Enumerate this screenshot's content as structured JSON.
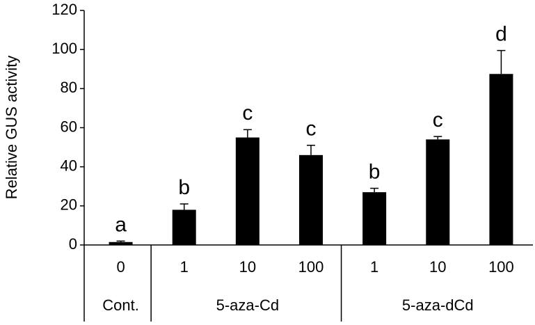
{
  "chart_data": {
    "type": "bar",
    "y_label": "Relative GUS activity",
    "color": "#000000",
    "ylim": [
      0,
      120
    ],
    "yticks": [
      0,
      20,
      40,
      60,
      80,
      100,
      120
    ],
    "grid": false,
    "groups": [
      {
        "name": "Cont.",
        "categories": [
          "0"
        ],
        "values": [
          1.5
        ],
        "errors": [
          0.5
        ],
        "letters": [
          "a"
        ]
      },
      {
        "name": "5-aza-Cd",
        "categories": [
          "1",
          "10",
          "100"
        ],
        "values": [
          18,
          55,
          46
        ],
        "errors": [
          3,
          4,
          5
        ],
        "letters": [
          "b",
          "c",
          "c"
        ]
      },
      {
        "name": "5-aza-dCd",
        "categories": [
          "1",
          "10",
          "100"
        ],
        "values": [
          27,
          54,
          87.5
        ],
        "errors": [
          2,
          1.5,
          12
        ],
        "letters": [
          "b",
          "c",
          "d"
        ]
      }
    ]
  }
}
